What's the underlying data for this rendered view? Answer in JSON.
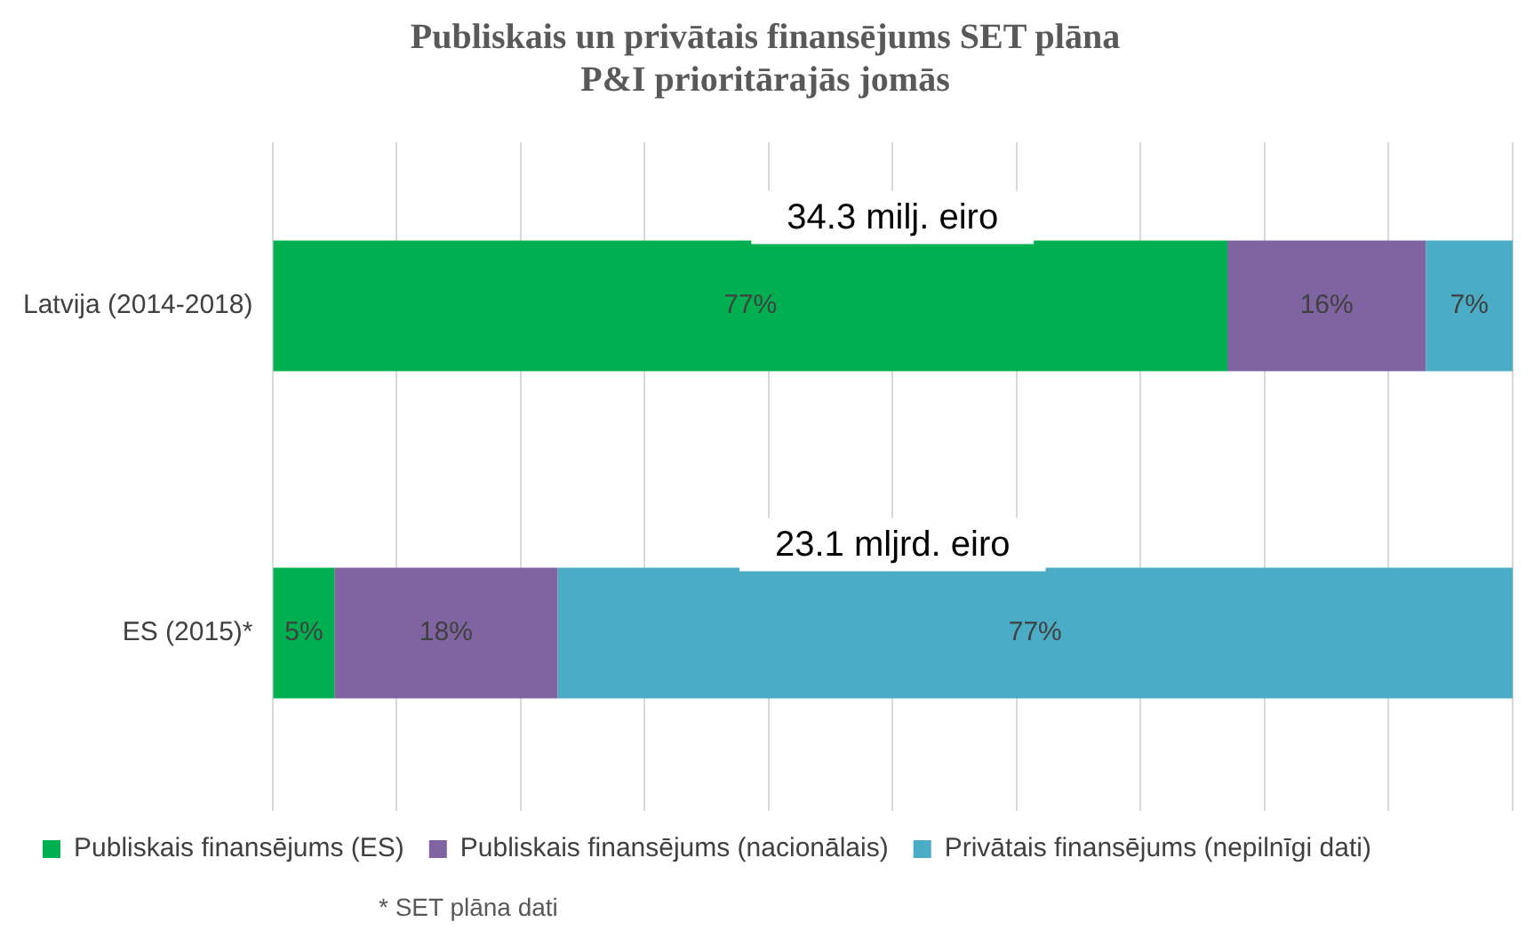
{
  "chart_data": {
    "type": "bar",
    "orientation": "horizontal",
    "stacked": true,
    "title": "Publiskais un privātais finansējums SET plāna\nP&I prioritārajās jomās",
    "categories": [
      "Latvija (2014-2018)",
      "ES (2015)*"
    ],
    "series": [
      {
        "name": "Publiskais finansējums (ES)",
        "color": "#00b050",
        "values": [
          77,
          5
        ],
        "value_labels": [
          "77%",
          "5%"
        ]
      },
      {
        "name": "Publiskais finansējums (nacionālais)",
        "color": "#8064a2",
        "values": [
          16,
          18
        ],
        "value_labels": [
          "16%",
          "18%"
        ]
      },
      {
        "name": "Privātais finansējums (nepilnīgi dati)",
        "color": "#4bacc6",
        "values": [
          7,
          77
        ],
        "value_labels": [
          "7%",
          "77%"
        ]
      }
    ],
    "xlim": [
      0,
      100
    ],
    "xticks": [
      {
        "value": 0,
        "label": null
      },
      {
        "value": 10,
        "label": null
      },
      {
        "value": 20,
        "label": null
      },
      {
        "value": 30,
        "label": null
      },
      {
        "value": 40,
        "label": null
      },
      {
        "value": 50,
        "label": null
      },
      {
        "value": 60,
        "label": null
      },
      {
        "value": 70,
        "label": null
      },
      {
        "value": 80,
        "label": null
      },
      {
        "value": 90,
        "label": null
      },
      {
        "value": 100,
        "label": null
      }
    ],
    "tick_labels": "y",
    "grid": "x",
    "legend": "bottom",
    "annotations": [
      "34.3 milj. eiro",
      "23.1 mljrd. eiro",
      "* SET plāna dati"
    ]
  }
}
